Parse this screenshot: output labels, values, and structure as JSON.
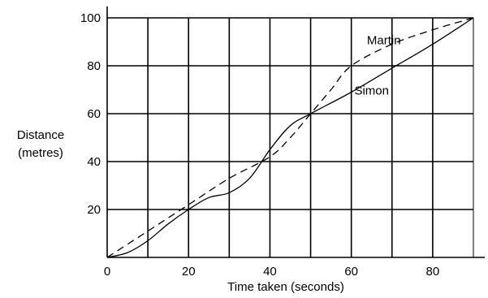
{
  "chart_data": {
    "type": "line",
    "xlabel": "Time taken (seconds)",
    "ylabel": [
      "Distance",
      "(metres)"
    ],
    "xlim": [
      0,
      90
    ],
    "ylim": [
      0,
      100
    ],
    "x_ticks": [
      0,
      20,
      40,
      60,
      80
    ],
    "y_ticks": [
      20,
      40,
      60,
      80,
      100
    ],
    "grid": true,
    "series": [
      {
        "name": "Martin",
        "style": "dashed",
        "x": [
          0,
          10,
          20,
          30,
          40,
          45,
          50,
          55,
          60,
          70,
          80,
          90
        ],
        "y": [
          0,
          11,
          22,
          33,
          42,
          50,
          60,
          70,
          80,
          89,
          95,
          100
        ]
      },
      {
        "name": "Simon",
        "style": "solid",
        "x": [
          0,
          5,
          10,
          15,
          20,
          25,
          30,
          35,
          40,
          45,
          50,
          60,
          70,
          80,
          90
        ],
        "y": [
          0,
          2,
          7,
          14,
          20,
          25,
          27,
          33,
          45,
          55,
          60,
          69,
          79,
          89,
          100
        ]
      }
    ]
  }
}
